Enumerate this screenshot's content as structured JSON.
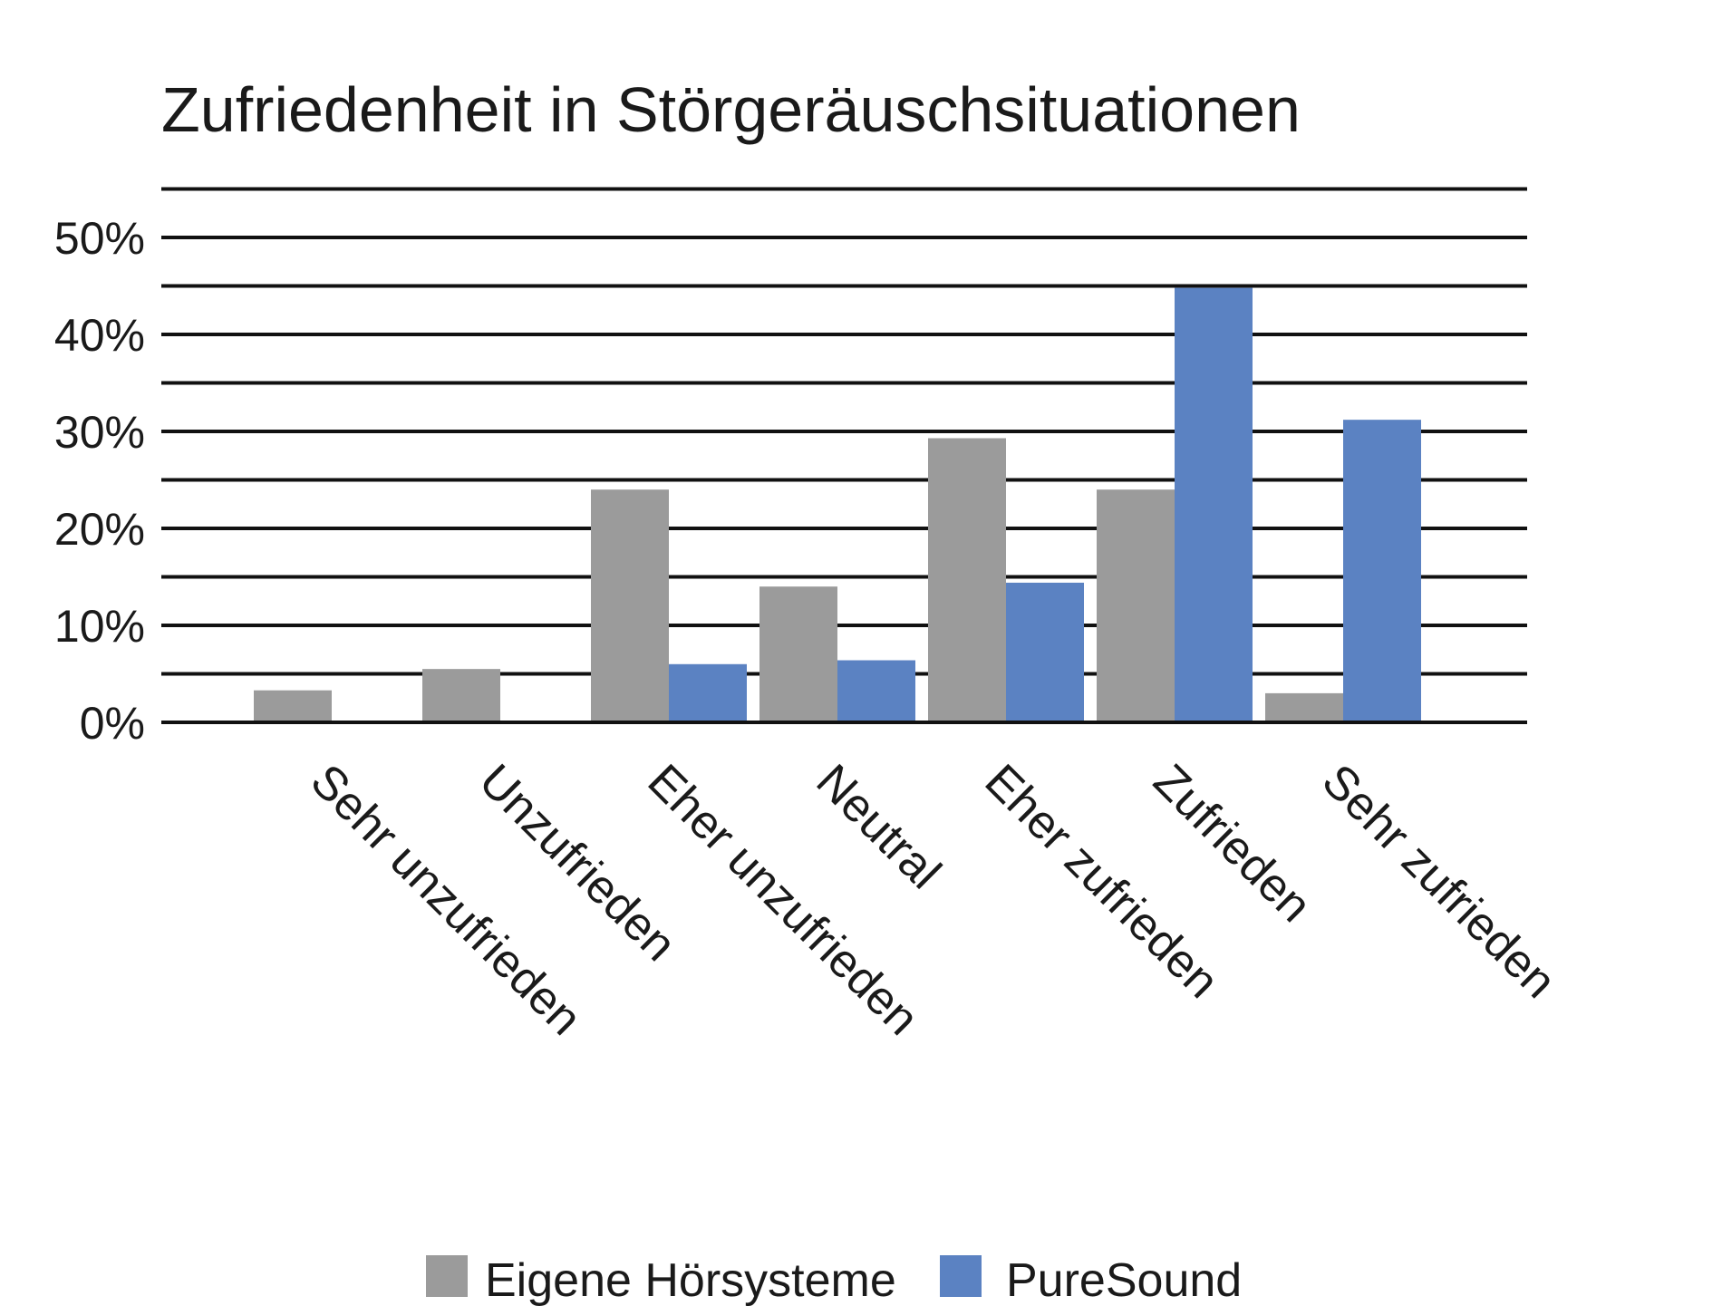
{
  "chart_data": {
    "type": "bar",
    "title": "Zufriedenheit in Störgeräuschsituationen",
    "categories": [
      "Sehr unzufrieden",
      "Unzufrieden",
      "Eher unzufrieden",
      "Neutral",
      "Eher zufrieden",
      "Zufrieden",
      "Sehr zufrieden"
    ],
    "series": [
      {
        "name": "Eigene Hörsysteme",
        "color": "#9b9b9b",
        "values": [
          3.3,
          5.5,
          24,
          14,
          29.3,
          24,
          3
        ]
      },
      {
        "name": "PureSound",
        "color": "#5b82c2",
        "values": [
          0,
          0,
          6,
          6.4,
          14.4,
          44.8,
          31.2
        ]
      }
    ],
    "ylim": [
      0,
      55
    ],
    "yticks": [
      {
        "value": 0,
        "label": "0%"
      },
      {
        "value": 10,
        "label": "10%"
      },
      {
        "value": 20,
        "label": "20%"
      },
      {
        "value": 30,
        "label": "30%"
      },
      {
        "value": 40,
        "label": "40%"
      },
      {
        "value": 50,
        "label": "50%"
      }
    ],
    "grid": true,
    "legend_position": "bottom"
  }
}
